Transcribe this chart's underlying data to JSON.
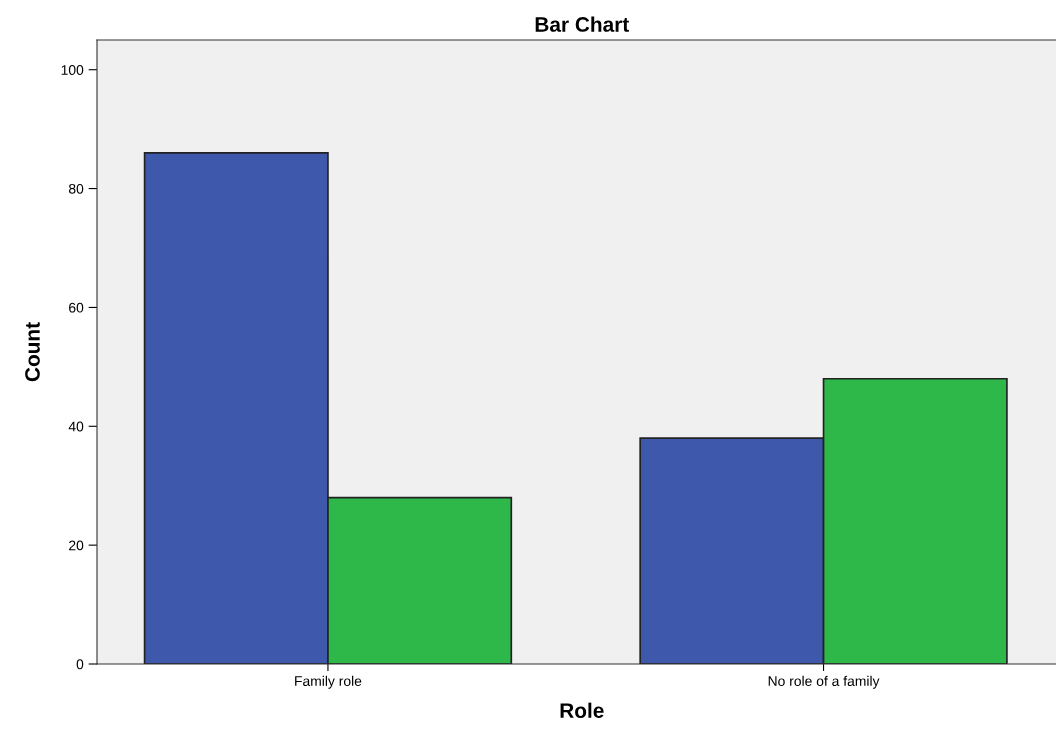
{
  "chart_data": {
    "type": "bar",
    "title": "Bar Chart",
    "xlabel": "Role",
    "ylabel": "Count",
    "categories": [
      "Family role",
      "No role of a family"
    ],
    "series": [
      {
        "color": "#3e58ac",
        "values": [
          86,
          38
        ]
      },
      {
        "color": "#2fb84a",
        "values": [
          28,
          48
        ]
      }
    ],
    "ylim": [
      0,
      105
    ],
    "yticks": [
      0,
      20,
      40,
      60,
      80,
      100
    ],
    "grid": false
  }
}
